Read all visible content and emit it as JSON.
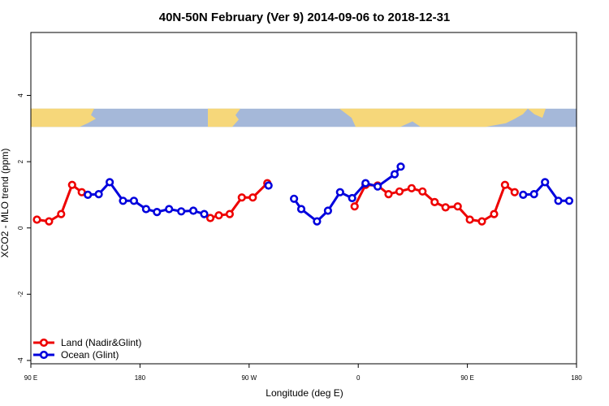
{
  "chart_data": {
    "type": "line",
    "title": "40N-50N February (Ver 9)   2014-09-06 to 2018-12-31",
    "xlabel": "Longitude (deg E)",
    "ylabel": "XCO2 - MLO trend (ppm)",
    "xlim": [
      90,
      540
    ],
    "ylim": [
      -4.1,
      5.9
    ],
    "x_ticks": [
      {
        "value": 90,
        "label": "90 E"
      },
      {
        "value": 180,
        "label": "180"
      },
      {
        "value": 270,
        "label": "90 W"
      },
      {
        "value": 360,
        "label": "0"
      },
      {
        "value": 450,
        "label": "90 E"
      },
      {
        "value": 540,
        "label": "180"
      }
    ],
    "y_ticks": [
      {
        "value": -4,
        "label": "-4"
      },
      {
        "value": -2,
        "label": "-2"
      },
      {
        "value": 0,
        "label": "0"
      },
      {
        "value": 2,
        "label": "2"
      },
      {
        "value": 4,
        "label": "4"
      }
    ],
    "grid": false,
    "legend_position": "bottom-left",
    "map_strip": {
      "y_range": [
        3.05,
        3.6
      ],
      "ocean_color": "#a5b8d9",
      "land_color": "#f6d77a"
    },
    "series": [
      {
        "name": "Land (Nadir&Glint)",
        "color": "#ee0000",
        "segments": [
          [
            [
              95,
              0.25
            ],
            [
              105,
              0.2
            ],
            [
              115,
              0.42
            ],
            [
              124,
              1.3
            ],
            [
              132,
              1.08
            ]
          ],
          [
            [
              238,
              0.3
            ],
            [
              245,
              0.38
            ],
            [
              254,
              0.42
            ],
            [
              264,
              0.92
            ],
            [
              273,
              0.92
            ],
            [
              285,
              1.35
            ]
          ],
          [
            [
              357,
              0.65
            ],
            [
              366,
              1.3
            ],
            [
              376,
              1.28
            ],
            [
              385,
              1.02
            ],
            [
              394,
              1.1
            ],
            [
              404,
              1.2
            ],
            [
              413,
              1.1
            ],
            [
              423,
              0.78
            ],
            [
              432,
              0.62
            ],
            [
              442,
              0.65
            ],
            [
              452,
              0.25
            ],
            [
              462,
              0.2
            ],
            [
              472,
              0.42
            ],
            [
              481,
              1.3
            ],
            [
              489,
              1.08
            ]
          ]
        ]
      },
      {
        "name": "Ocean (Glint)",
        "color": "#0000dd",
        "segments": [
          [
            [
              137,
              1.0
            ],
            [
              146,
              1.02
            ],
            [
              155,
              1.38
            ],
            [
              166,
              0.82
            ],
            [
              175,
              0.82
            ],
            [
              185,
              0.57
            ],
            [
              194,
              0.48
            ],
            [
              204,
              0.57
            ],
            [
              214,
              0.5
            ],
            [
              224,
              0.52
            ],
            [
              233,
              0.42
            ]
          ],
          [
            [
              286,
              1.28
            ]
          ],
          [
            [
              307,
              0.88
            ],
            [
              313,
              0.57
            ],
            [
              326,
              0.2
            ],
            [
              335,
              0.52
            ],
            [
              345,
              1.08
            ],
            [
              355,
              0.9
            ],
            [
              366,
              1.35
            ],
            [
              376,
              1.25
            ],
            [
              390,
              1.62
            ],
            [
              395,
              1.85
            ]
          ],
          [
            [
              496,
              1.0
            ],
            [
              505,
              1.02
            ],
            [
              514,
              1.38
            ],
            [
              525,
              0.82
            ],
            [
              534,
              0.82
            ]
          ]
        ]
      }
    ]
  }
}
